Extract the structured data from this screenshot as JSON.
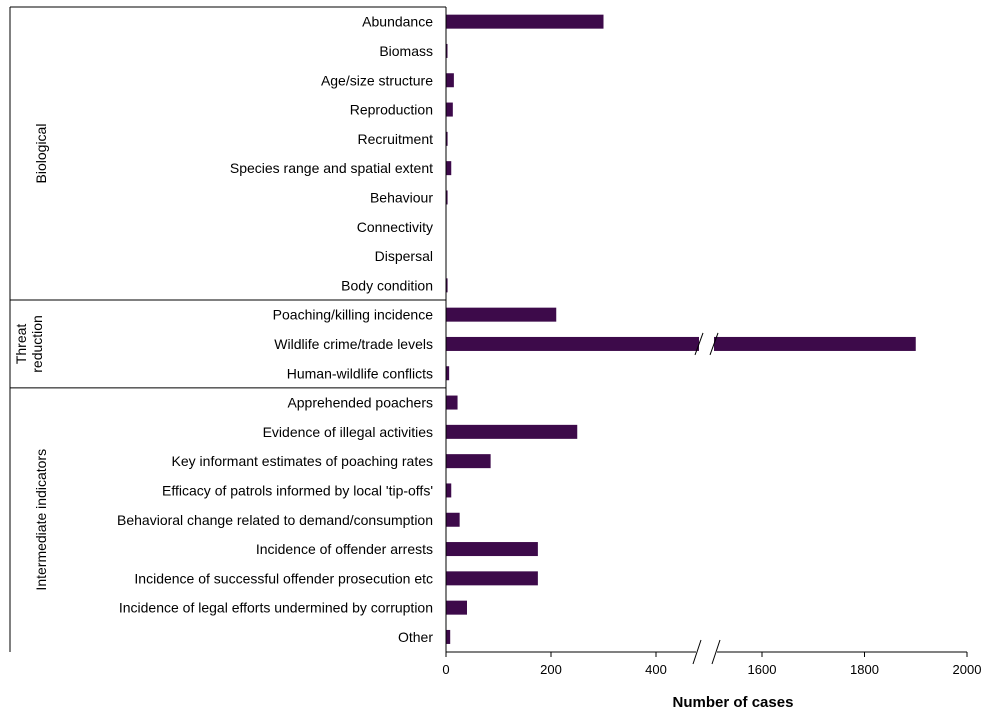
{
  "chart_data": {
    "type": "bar",
    "orientation": "horizontal",
    "title": "",
    "xlabel": "Number of cases",
    "ylabel": "",
    "bar_color": "#3d0a4a",
    "broken_axis": {
      "lower_segment": [
        0,
        480
      ],
      "upper_segment": [
        1500,
        2000
      ],
      "ticks": [
        "0",
        "200",
        "400",
        "1600",
        "1800",
        "2000"
      ]
    },
    "groups": [
      {
        "label": "Biological",
        "lines": [
          "Biological"
        ],
        "start": 0,
        "end": 9
      },
      {
        "label": "Threat reduction",
        "lines": [
          "Threat",
          "reduction"
        ],
        "start": 10,
        "end": 12
      },
      {
        "label": "Intermediate indicators",
        "lines": [
          "Intermediate indicators"
        ],
        "start": 13,
        "end": 21
      }
    ],
    "categories": [
      "Abundance",
      "Biomass",
      "Age/size structure",
      "Reproduction",
      "Recruitment",
      "Species range and spatial extent",
      "Behaviour",
      "Connectivity",
      "Dispersal",
      "Body condition",
      "Poaching/killing incidence",
      "Wildlife crime/trade levels",
      "Human-wildlife conflicts",
      "Apprehended poachers",
      "Evidence of illegal activities",
      "Key informant estimates of poaching rates",
      "Efficacy of patrols informed by local 'tip-offs'",
      "Behavioral change related to demand/consumption",
      "Incidence of offender arrests",
      "Incidence of successful offender prosecution etc",
      "Incidence of legal efforts undermined by corruption",
      "Other"
    ],
    "values": [
      300,
      2,
      15,
      13,
      3,
      10,
      3,
      0,
      0,
      3,
      210,
      1900,
      6,
      22,
      250,
      85,
      10,
      26,
      175,
      175,
      40,
      8
    ]
  }
}
